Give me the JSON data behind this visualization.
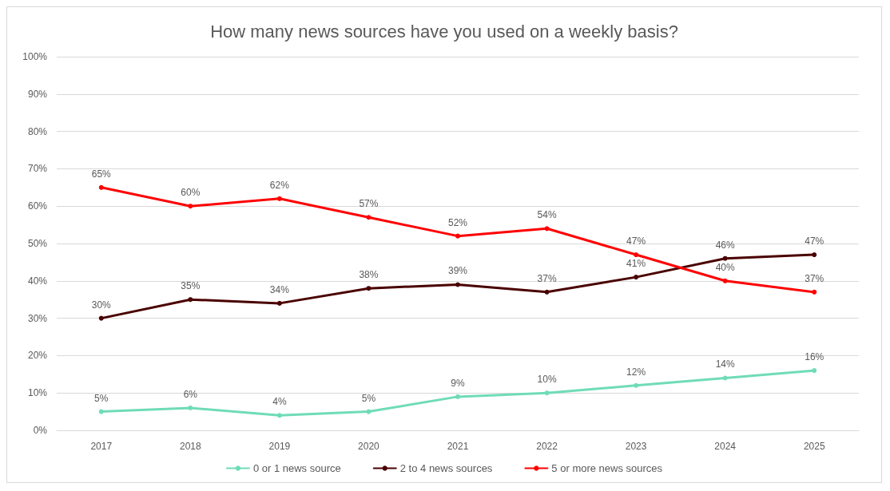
{
  "chart_data": {
    "type": "line",
    "title": "How many news sources have you used on a weekly basis?",
    "categories": [
      "2017",
      "2018",
      "2019",
      "2020",
      "2021",
      "2022",
      "2023",
      "2024",
      "2025"
    ],
    "series": [
      {
        "name": "0 or 1 news source",
        "color": "#6fdcb6",
        "values": [
          5,
          6,
          4,
          5,
          9,
          10,
          12,
          14,
          16
        ],
        "value_labels": [
          "5%",
          "6%",
          "4%",
          "5%",
          "9%",
          "10%",
          "12%",
          "14%",
          "16%"
        ]
      },
      {
        "name": "2 to 4 news sources",
        "color": "#4a0000",
        "values": [
          30,
          35,
          34,
          38,
          39,
          37,
          41,
          46,
          47
        ],
        "value_labels": [
          "30%",
          "35%",
          "34%",
          "38%",
          "39%",
          "37%",
          "41%",
          "46%",
          "47%"
        ]
      },
      {
        "name": "5 or more news sources",
        "color": "#ff0000",
        "values": [
          65,
          60,
          62,
          57,
          52,
          54,
          47,
          40,
          37
        ],
        "value_labels": [
          "65%",
          "60%",
          "62%",
          "57%",
          "52%",
          "54%",
          "47%",
          "40%",
          "37%"
        ]
      }
    ],
    "ylim": [
      0,
      100
    ],
    "yticks": [
      {
        "value": 0,
        "label": "0%"
      },
      {
        "value": 10,
        "label": "10%"
      },
      {
        "value": 20,
        "label": "20%"
      },
      {
        "value": 30,
        "label": "30%"
      },
      {
        "value": 40,
        "label": "40%"
      },
      {
        "value": 50,
        "label": "50%"
      },
      {
        "value": 60,
        "label": "60%"
      },
      {
        "value": 70,
        "label": "70%"
      },
      {
        "value": 80,
        "label": "80%"
      },
      {
        "value": 90,
        "label": "90%"
      },
      {
        "value": 100,
        "label": "100%"
      }
    ],
    "grid": "y",
    "legend": "bottom",
    "marker": "circle",
    "line_style": "solid"
  }
}
